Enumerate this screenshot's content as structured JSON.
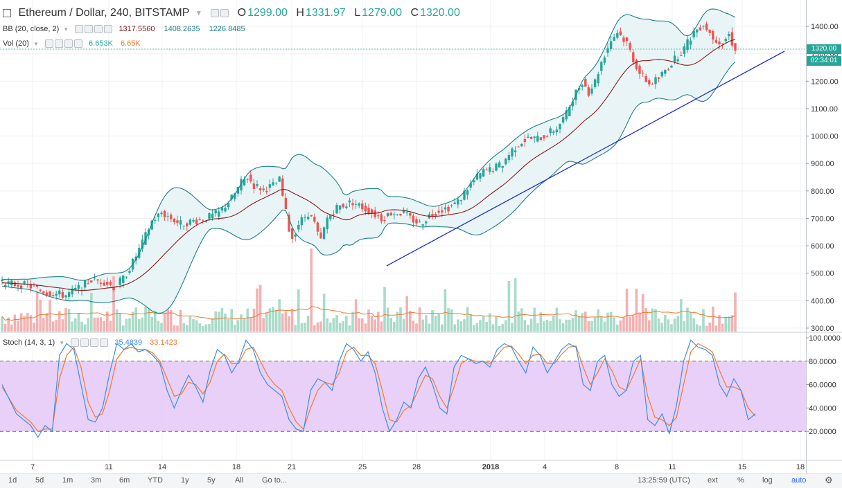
{
  "header": {
    "symbol": "Ethereum / Dollar, 240, BITSTAMP",
    "o_label": "O",
    "o_val": "1299.00",
    "h_label": "H",
    "h_val": "1331.97",
    "l_label": "L",
    "l_val": "1279.00",
    "c_label": "C",
    "c_val": "1320.00"
  },
  "bb": {
    "label": "BB (20, close, 2)",
    "v1": "1317.5560",
    "v2": "1408.2635",
    "v3": "1226.8485"
  },
  "vol": {
    "label": "Vol (20)",
    "v1": "6.653K",
    "v2": "6.65K"
  },
  "stoch": {
    "label": "Stoch (14, 3, 1)",
    "k": "35.4839",
    "d": "33.1423"
  },
  "price_tag": "1320.00",
  "countdown": "02:34:01",
  "colors": {
    "up": "#26a69a",
    "down": "#ef5350",
    "bb_band": "#1e7f86",
    "bb_mid": "#8b1a1a",
    "trend": "#1f2fd0",
    "stoch_k": "#3b8fe8",
    "stoch_d": "#f07a2c",
    "stoch_fill": "#e4c8f7"
  },
  "bottom": {
    "ranges": [
      "1d",
      "5d",
      "1m",
      "3m",
      "6m",
      "YTD",
      "1y",
      "5y",
      "All"
    ],
    "goto": "Go to...",
    "time": "13:25:59 (UTC)",
    "ext": "ext",
    "pct": "%",
    "log": "log",
    "auto": "auto"
  },
  "chart_data": {
    "type": "candlestick",
    "x_ticks": [
      "7",
      "11",
      "14",
      "18",
      "21",
      "25",
      "28",
      "2018",
      "4",
      "8",
      "11",
      "15",
      "18"
    ],
    "y_ticks_price": [
      "1400.00",
      "1300.00",
      "1200.00",
      "1100.00",
      "1000.00",
      "900.00",
      "800.00",
      "700.00",
      "600.00",
      "500.00",
      "400.00",
      "300.00"
    ],
    "y_ticks_stoch": [
      "100.0000",
      "80.0000",
      "60.0000",
      "40.0000",
      "20.0000"
    ],
    "price_ylim": [
      300,
      1470
    ],
    "stoch_ylim": [
      0,
      105
    ],
    "stoch_bands": [
      20,
      80
    ],
    "close_path": [
      [
        0,
        465
      ],
      [
        8,
        455
      ],
      [
        14,
        430
      ],
      [
        20,
        420
      ],
      [
        24,
        445
      ],
      [
        28,
        475
      ],
      [
        32,
        470
      ],
      [
        35,
        450
      ],
      [
        38,
        480
      ],
      [
        41,
        540
      ],
      [
        44,
        610
      ],
      [
        47,
        690
      ],
      [
        50,
        720
      ],
      [
        53,
        700
      ],
      [
        56,
        680
      ],
      [
        60,
        690
      ],
      [
        64,
        700
      ],
      [
        68,
        720
      ],
      [
        71,
        760
      ],
      [
        73,
        790
      ],
      [
        75,
        830
      ],
      [
        77,
        850
      ],
      [
        79,
        820
      ],
      [
        82,
        805
      ],
      [
        85,
        820
      ],
      [
        87,
        840
      ],
      [
        88,
        780
      ],
      [
        89,
        720
      ],
      [
        90,
        660
      ],
      [
        91,
        630
      ],
      [
        93,
        680
      ],
      [
        96,
        720
      ],
      [
        98,
        680
      ],
      [
        99,
        640
      ],
      [
        100,
        620
      ],
      [
        102,
        700
      ],
      [
        105,
        740
      ],
      [
        110,
        760
      ],
      [
        113,
        740
      ],
      [
        116,
        720
      ],
      [
        119,
        700
      ],
      [
        122,
        720
      ],
      [
        126,
        720
      ],
      [
        128,
        700
      ],
      [
        131,
        680
      ],
      [
        134,
        710
      ],
      [
        137,
        730
      ],
      [
        140,
        740
      ],
      [
        143,
        760
      ],
      [
        146,
        810
      ],
      [
        149,
        850
      ],
      [
        151,
        870
      ],
      [
        154,
        880
      ],
      [
        157,
        900
      ],
      [
        160,
        950
      ],
      [
        163,
        980
      ],
      [
        165,
        990
      ],
      [
        168,
        990
      ],
      [
        170,
        1000
      ],
      [
        174,
        1030
      ],
      [
        177,
        1080
      ],
      [
        179,
        1140
      ],
      [
        182,
        1200
      ],
      [
        184,
        1160
      ],
      [
        186,
        1200
      ],
      [
        188,
        1270
      ],
      [
        191,
        1350
      ],
      [
        193,
        1380
      ],
      [
        196,
        1340
      ],
      [
        198,
        1280
      ],
      [
        200,
        1230
      ],
      [
        203,
        1190
      ],
      [
        206,
        1210
      ],
      [
        208,
        1240
      ],
      [
        211,
        1280
      ],
      [
        214,
        1320
      ],
      [
        217,
        1380
      ],
      [
        220,
        1410
      ],
      [
        223,
        1360
      ],
      [
        226,
        1340
      ],
      [
        228,
        1370
      ],
      [
        229,
        1340
      ],
      [
        230,
        1320
      ]
    ],
    "stoch_k_path": [
      [
        0,
        60
      ],
      [
        4,
        35
      ],
      [
        8,
        25
      ],
      [
        10,
        15
      ],
      [
        12,
        25
      ],
      [
        14,
        20
      ],
      [
        16,
        85
      ],
      [
        18,
        95
      ],
      [
        20,
        90
      ],
      [
        22,
        60
      ],
      [
        24,
        30
      ],
      [
        26,
        28
      ],
      [
        28,
        40
      ],
      [
        30,
        70
      ],
      [
        32,
        95
      ],
      [
        34,
        90
      ],
      [
        36,
        95
      ],
      [
        38,
        88
      ],
      [
        40,
        90
      ],
      [
        42,
        85
      ],
      [
        44,
        78
      ],
      [
        46,
        55
      ],
      [
        48,
        40
      ],
      [
        50,
        55
      ],
      [
        52,
        68
      ],
      [
        54,
        58
      ],
      [
        56,
        45
      ],
      [
        58,
        72
      ],
      [
        60,
        90
      ],
      [
        62,
        85
      ],
      [
        64,
        70
      ],
      [
        66,
        80
      ],
      [
        68,
        98
      ],
      [
        70,
        90
      ],
      [
        72,
        70
      ],
      [
        74,
        60
      ],
      [
        76,
        55
      ],
      [
        78,
        50
      ],
      [
        80,
        30
      ],
      [
        82,
        22
      ],
      [
        84,
        20
      ],
      [
        86,
        55
      ],
      [
        88,
        65
      ],
      [
        90,
        62
      ],
      [
        92,
        55
      ],
      [
        94,
        80
      ],
      [
        96,
        95
      ],
      [
        98,
        90
      ],
      [
        100,
        80
      ],
      [
        102,
        88
      ],
      [
        104,
        70
      ],
      [
        106,
        40
      ],
      [
        108,
        20
      ],
      [
        110,
        30
      ],
      [
        112,
        45
      ],
      [
        114,
        40
      ],
      [
        116,
        65
      ],
      [
        118,
        75
      ],
      [
        120,
        60
      ],
      [
        122,
        40
      ],
      [
        124,
        35
      ],
      [
        126,
        75
      ],
      [
        128,
        85
      ],
      [
        130,
        82
      ],
      [
        132,
        78
      ],
      [
        134,
        80
      ],
      [
        136,
        75
      ],
      [
        138,
        90
      ],
      [
        140,
        95
      ],
      [
        142,
        92
      ],
      [
        144,
        80
      ],
      [
        146,
        70
      ],
      [
        148,
        92
      ],
      [
        150,
        85
      ],
      [
        152,
        70
      ],
      [
        154,
        80
      ],
      [
        156,
        90
      ],
      [
        158,
        95
      ],
      [
        160,
        92
      ],
      [
        162,
        60
      ],
      [
        164,
        55
      ],
      [
        166,
        80
      ],
      [
        168,
        85
      ],
      [
        170,
        60
      ],
      [
        172,
        50
      ],
      [
        174,
        55
      ],
      [
        176,
        80
      ],
      [
        178,
        85
      ],
      [
        180,
        30
      ],
      [
        182,
        25
      ],
      [
        184,
        35
      ],
      [
        186,
        18
      ],
      [
        188,
        42
      ],
      [
        190,
        80
      ],
      [
        192,
        98
      ],
      [
        194,
        92
      ],
      [
        196,
        90
      ],
      [
        198,
        85
      ],
      [
        200,
        60
      ],
      [
        202,
        50
      ],
      [
        204,
        65
      ],
      [
        206,
        55
      ],
      [
        208,
        30
      ],
      [
        210,
        35
      ]
    ],
    "stoch_d_path": [
      [
        0,
        58
      ],
      [
        4,
        38
      ],
      [
        8,
        28
      ],
      [
        10,
        20
      ],
      [
        12,
        22
      ],
      [
        14,
        22
      ],
      [
        16,
        65
      ],
      [
        18,
        85
      ],
      [
        20,
        92
      ],
      [
        22,
        75
      ],
      [
        24,
        45
      ],
      [
        26,
        32
      ],
      [
        28,
        35
      ],
      [
        30,
        55
      ],
      [
        32,
        82
      ],
      [
        34,
        90
      ],
      [
        36,
        92
      ],
      [
        38,
        90
      ],
      [
        40,
        90
      ],
      [
        42,
        87
      ],
      [
        44,
        80
      ],
      [
        46,
        65
      ],
      [
        48,
        50
      ],
      [
        50,
        52
      ],
      [
        52,
        62
      ],
      [
        54,
        60
      ],
      [
        56,
        52
      ],
      [
        58,
        62
      ],
      [
        60,
        80
      ],
      [
        62,
        86
      ],
      [
        64,
        78
      ],
      [
        66,
        78
      ],
      [
        68,
        90
      ],
      [
        70,
        92
      ],
      [
        72,
        80
      ],
      [
        74,
        68
      ],
      [
        76,
        60
      ],
      [
        78,
        55
      ],
      [
        80,
        40
      ],
      [
        82,
        28
      ],
      [
        84,
        22
      ],
      [
        86,
        40
      ],
      [
        88,
        55
      ],
      [
        90,
        62
      ],
      [
        92,
        60
      ],
      [
        94,
        70
      ],
      [
        96,
        88
      ],
      [
        98,
        92
      ],
      [
        100,
        85
      ],
      [
        102,
        85
      ],
      [
        104,
        78
      ],
      [
        106,
        55
      ],
      [
        108,
        30
      ],
      [
        110,
        28
      ],
      [
        112,
        38
      ],
      [
        114,
        42
      ],
      [
        116,
        55
      ],
      [
        118,
        68
      ],
      [
        120,
        65
      ],
      [
        122,
        50
      ],
      [
        124,
        40
      ],
      [
        126,
        58
      ],
      [
        128,
        78
      ],
      [
        130,
        82
      ],
      [
        132,
        80
      ],
      [
        134,
        80
      ],
      [
        136,
        78
      ],
      [
        138,
        85
      ],
      [
        140,
        92
      ],
      [
        142,
        93
      ],
      [
        144,
        86
      ],
      [
        146,
        78
      ],
      [
        148,
        85
      ],
      [
        150,
        86
      ],
      [
        152,
        78
      ],
      [
        154,
        78
      ],
      [
        156,
        86
      ],
      [
        158,
        92
      ],
      [
        160,
        93
      ],
      [
        162,
        75
      ],
      [
        164,
        60
      ],
      [
        166,
        70
      ],
      [
        168,
        82
      ],
      [
        170,
        72
      ],
      [
        172,
        58
      ],
      [
        174,
        55
      ],
      [
        176,
        68
      ],
      [
        178,
        82
      ],
      [
        180,
        50
      ],
      [
        182,
        32
      ],
      [
        184,
        30
      ],
      [
        186,
        25
      ],
      [
        188,
        32
      ],
      [
        190,
        60
      ],
      [
        192,
        88
      ],
      [
        194,
        95
      ],
      [
        196,
        92
      ],
      [
        198,
        88
      ],
      [
        200,
        72
      ],
      [
        202,
        58
      ],
      [
        204,
        58
      ],
      [
        206,
        55
      ],
      [
        208,
        40
      ],
      [
        210,
        33
      ]
    ]
  }
}
